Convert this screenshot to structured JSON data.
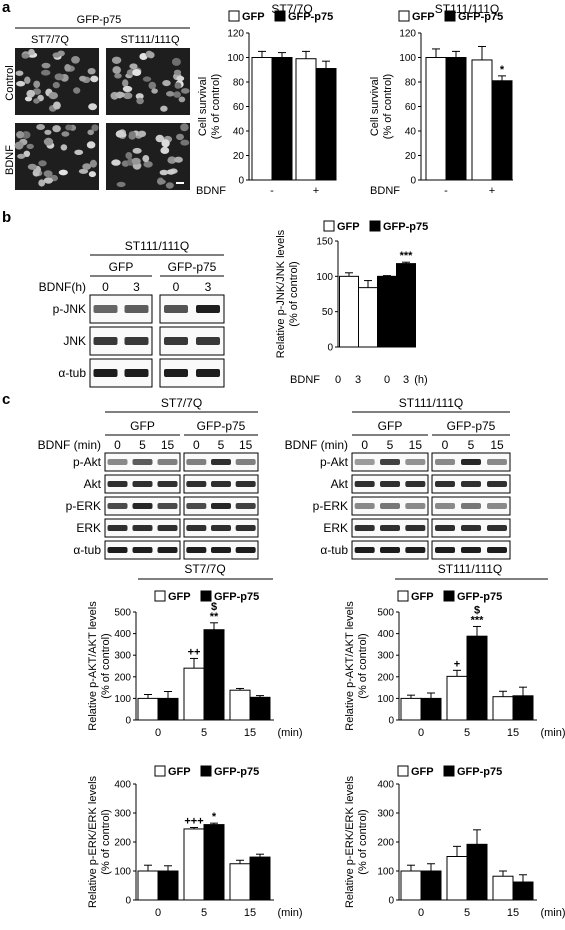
{
  "panel_letters": {
    "a": "a",
    "b": "b",
    "c": "c"
  },
  "panel_a": {
    "micro_title": "GFP-p75",
    "col_labels": [
      "ST7/7Q",
      "ST111/111Q"
    ],
    "row_labels": [
      "Control",
      "BDNF"
    ]
  },
  "panel_b_blot": {
    "title": "ST111/111Q",
    "groups": [
      "GFP",
      "GFP-p75"
    ],
    "time_header": "BDNF(h)",
    "times": [
      "0",
      "3",
      "0",
      "3"
    ],
    "rows": [
      "p-JNK",
      "JNK",
      "α-tub"
    ]
  },
  "panel_c_blots": [
    {
      "title": "ST7/7Q",
      "groups": [
        "GFP",
        "GFP-p75"
      ],
      "time_header": "BDNF (min)",
      "times": [
        "0",
        "5",
        "15",
        "0",
        "5",
        "15"
      ],
      "rows": [
        "p-Akt",
        "Akt",
        "p-ERK",
        "ERK",
        "α-tub"
      ]
    },
    {
      "title": "ST111/111Q",
      "groups": [
        "GFP",
        "GFP-p75"
      ],
      "time_header": "BDNF (min)",
      "times": [
        "0",
        "5",
        "15",
        "0",
        "5",
        "15"
      ],
      "rows": [
        "p-Akt",
        "Akt",
        "p-ERK",
        "ERK",
        "α-tub"
      ]
    }
  ],
  "colors": {
    "gfp": "#ffffff",
    "gfp_p75": "#000000"
  },
  "chart_data": [
    {
      "type": "bar",
      "title": "ST7/7Q",
      "ylabel": "Cell survival\n(% of control)",
      "ylim": [
        0,
        120
      ],
      "yticks": [
        0,
        20,
        40,
        60,
        80,
        100,
        120
      ],
      "xaxis_prefix": "BDNF",
      "categories": [
        "-",
        "+"
      ],
      "legend": [
        "GFP",
        "GFP-p75"
      ],
      "series": [
        {
          "name": "GFP",
          "values": [
            100,
            99
          ],
          "errors": [
            5,
            6
          ]
        },
        {
          "name": "GFP-p75",
          "values": [
            100,
            91
          ],
          "errors": [
            4,
            6
          ]
        }
      ],
      "annotations": []
    },
    {
      "type": "bar",
      "title": "ST111/111Q",
      "ylabel": "Cell survival\n(% of control)",
      "ylim": [
        0,
        120
      ],
      "yticks": [
        0,
        20,
        40,
        60,
        80,
        100,
        120
      ],
      "xaxis_prefix": "BDNF",
      "categories": [
        "-",
        "+"
      ],
      "legend": [
        "GFP",
        "GFP-p75"
      ],
      "series": [
        {
          "name": "GFP",
          "values": [
            100,
            98
          ],
          "errors": [
            7,
            11
          ]
        },
        {
          "name": "GFP-p75",
          "values": [
            100,
            81
          ],
          "errors": [
            5,
            4
          ]
        }
      ],
      "annotations": [
        {
          "cat": 1,
          "series": 1,
          "text": "*"
        }
      ]
    },
    {
      "type": "bar",
      "title": "",
      "ylabel": "Relative p-JNK/JNK levels\n(% of control)",
      "ylim": [
        0,
        150
      ],
      "yticks": [
        0,
        50,
        100,
        150
      ],
      "xaxis_prefix": "BDNF",
      "categories": [
        "0",
        "3",
        "0",
        "3"
      ],
      "x_unit": "(h)",
      "legend": [
        "GFP",
        "GFP-p75"
      ],
      "bars": [
        {
          "series": 0,
          "value": 100,
          "error": 5
        },
        {
          "series": 0,
          "value": 84,
          "error": 10
        },
        {
          "series": 1,
          "value": 100,
          "error": 1
        },
        {
          "series": 1,
          "value": 118,
          "error": 2,
          "label": "***"
        }
      ]
    },
    {
      "type": "bar",
      "title": "ST7/7Q",
      "ylabel": "Relative p-AKT/AKT levels\n(% of control)",
      "ylim": [
        0,
        500
      ],
      "yticks": [
        0,
        100,
        200,
        300,
        400,
        500
      ],
      "categories": [
        "0",
        "5",
        "15"
      ],
      "x_unit": "(min)",
      "legend": [
        "GFP",
        "GFP-p75"
      ],
      "series": [
        {
          "name": "GFP",
          "values": [
            100,
            240,
            138
          ],
          "errors": [
            18,
            45,
            8
          ]
        },
        {
          "name": "GFP-p75",
          "values": [
            100,
            418,
            105
          ],
          "errors": [
            32,
            32,
            8
          ]
        }
      ],
      "annotations": [
        {
          "cat": 1,
          "series": 0,
          "text": "++"
        },
        {
          "cat": 1,
          "series": 1,
          "text": "**"
        },
        {
          "cat": 1,
          "series": 1,
          "text": "$",
          "level": 2
        }
      ]
    },
    {
      "type": "bar",
      "title": "ST111/111Q",
      "ylabel": "Relative p-AKT/AKT levels\n(% of control)",
      "ylim": [
        0,
        500
      ],
      "yticks": [
        0,
        100,
        200,
        300,
        400,
        500
      ],
      "categories": [
        "0",
        "5",
        "15"
      ],
      "x_unit": "(min)",
      "legend": [
        "GFP",
        "GFP-p75"
      ],
      "series": [
        {
          "name": "GFP",
          "values": [
            100,
            202,
            108
          ],
          "errors": [
            15,
            28,
            25
          ]
        },
        {
          "name": "GFP-p75",
          "values": [
            100,
            388,
            112
          ],
          "errors": [
            25,
            45,
            40
          ]
        }
      ],
      "annotations": [
        {
          "cat": 1,
          "series": 0,
          "text": "+"
        },
        {
          "cat": 1,
          "series": 1,
          "text": "***"
        },
        {
          "cat": 1,
          "series": 1,
          "text": "$",
          "level": 2
        }
      ]
    },
    {
      "type": "bar",
      "title": "",
      "ylabel": "Relative p-ERK/ERK levels\n(% of control)",
      "ylim": [
        0,
        400
      ],
      "yticks": [
        0,
        100,
        200,
        300,
        400
      ],
      "categories": [
        "0",
        "5",
        "15"
      ],
      "x_unit": "(min)",
      "legend": [
        "GFP",
        "GFP-p75"
      ],
      "series": [
        {
          "name": "GFP",
          "values": [
            100,
            245,
            125
          ],
          "errors": [
            20,
            5,
            12
          ]
        },
        {
          "name": "GFP-p75",
          "values": [
            100,
            260,
            148
          ],
          "errors": [
            18,
            5,
            10
          ]
        }
      ],
      "annotations": [
        {
          "cat": 1,
          "series": 0,
          "text": "+++"
        },
        {
          "cat": 1,
          "series": 1,
          "text": "*"
        }
      ]
    },
    {
      "type": "bar",
      "title": "",
      "ylabel": "Relative p-ERK/ERK levels\n(% of control)",
      "ylim": [
        0,
        400
      ],
      "yticks": [
        0,
        100,
        200,
        300,
        400
      ],
      "categories": [
        "0",
        "5",
        "15"
      ],
      "x_unit": "(min)",
      "legend": [
        "GFP",
        "GFP-p75"
      ],
      "series": [
        {
          "name": "GFP",
          "values": [
            100,
            150,
            82
          ],
          "errors": [
            20,
            35,
            18
          ]
        },
        {
          "name": "GFP-p75",
          "values": [
            100,
            192,
            62
          ],
          "errors": [
            25,
            50,
            25
          ]
        }
      ],
      "annotations": []
    }
  ]
}
